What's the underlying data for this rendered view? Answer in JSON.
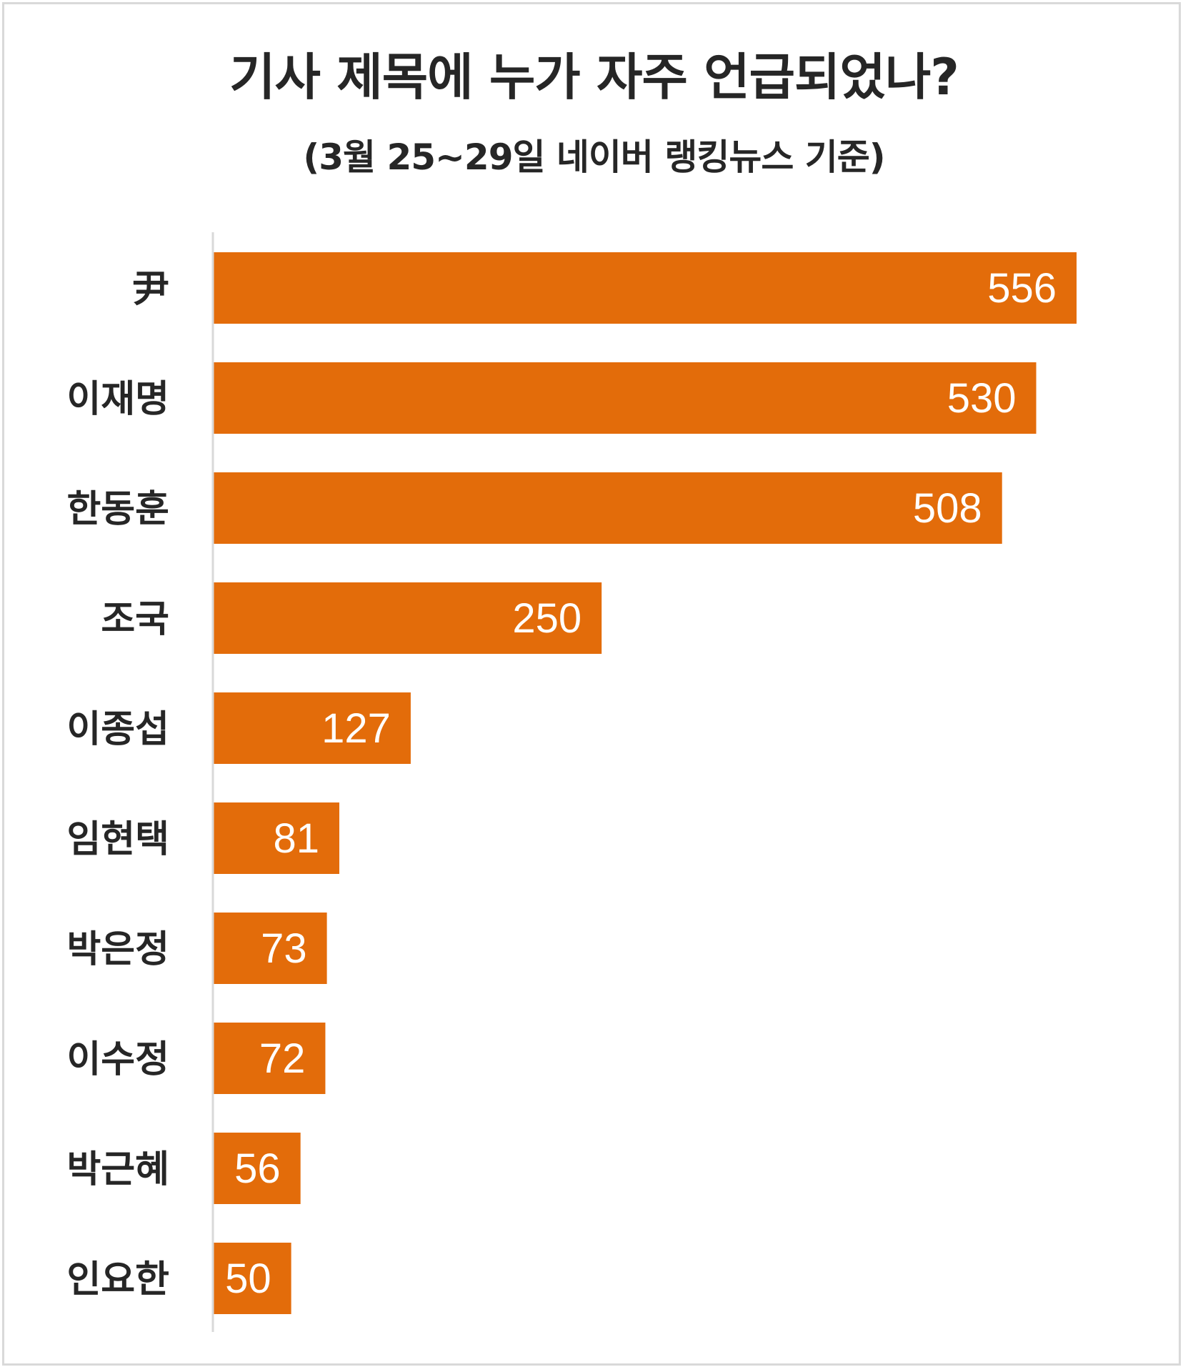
{
  "chart_data": {
    "type": "bar",
    "orientation": "horizontal",
    "title": "기사 제목에 누가 자주 언급되었나?",
    "subtitle": "(3월 25~29일 네이버 랭킹뉴스 기준)",
    "categories": [
      "尹",
      "이재명",
      "한동훈",
      "조국",
      "이종섭",
      "임현택",
      "박은정",
      "이수정",
      "박근혜",
      "인요한"
    ],
    "values": [
      556,
      530,
      508,
      250,
      127,
      81,
      73,
      72,
      56,
      50
    ],
    "xlabel": "",
    "ylabel": "",
    "xlim": [
      0,
      600
    ],
    "grid": false,
    "legend": "none",
    "bar_color": "#e36c0a",
    "label_color": "#ffffff"
  }
}
